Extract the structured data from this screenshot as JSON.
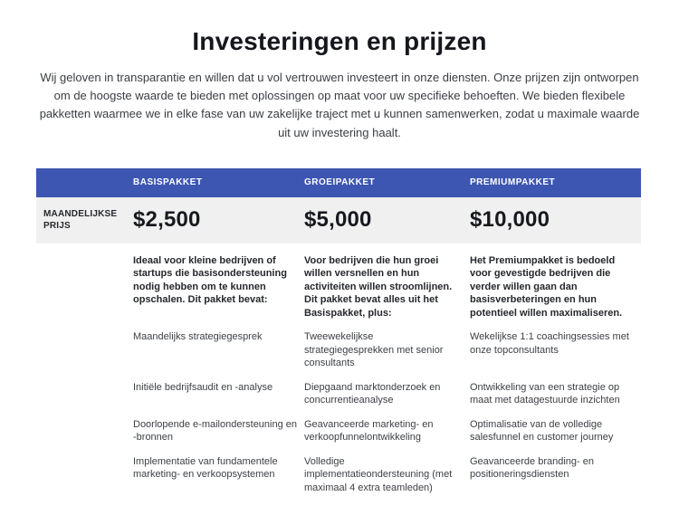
{
  "page": {
    "title": "Investeringen en prijzen",
    "intro": "Wij geloven in transparantie en willen dat u vol vertrouwen investeert in onze diensten. Onze prijzen zijn ontworpen om de hoogste waarde te bieden met oplossingen op maat voor uw specifieke behoeften. We bieden flexibele pakketten waarmee we in elke fase van uw zakelijke traject met u kunnen samenwerken, zodat u maximale waarde uit uw investering haalt."
  },
  "pricing_table": {
    "price_row_label": "MAANDELIJKSE PRIJS",
    "colors": {
      "header_bg": "#3c56b2",
      "price_row_bg": "#f0f0f0"
    },
    "columns": [
      {
        "name": "BASISPAKKET",
        "price": "$2,500",
        "description": "Ideaal voor kleine bedrijven of startups die basisondersteuning nodig hebben om te kunnen opschalen. Dit pakket bevat:",
        "features": [
          "Maandelijks strategiegesprek",
          "Initiële bedrijfsaudit en -analyse",
          "Doorlopende e-mailondersteuning en -bronnen",
          "Implementatie van fundamentele marketing- en verkoopsystemen"
        ]
      },
      {
        "name": "GROEIPAKKET",
        "price": "$5,000",
        "description": "Voor bedrijven die hun groei willen versnellen en hun activiteiten willen stroomlijnen. Dit pakket bevat alles uit het Basispakket, plus:",
        "features": [
          "Tweewekelijkse strategiegesprekken met senior consultants",
          "Diepgaand marktonderzoek en concurrentieanalyse",
          "Geavanceerde marketing- en verkoopfunnelontwikkeling",
          "Volledige implementatieondersteuning (met maximaal 4 extra teamleden)"
        ]
      },
      {
        "name": "PREMIUMPAKKET",
        "price": "$10,000",
        "description": "Het Premiumpakket is bedoeld voor gevestigde bedrijven die verder willen gaan dan basisverbeteringen en hun potentieel willen maximaliseren.",
        "features": [
          "Wekelijkse 1:1 coachingsessies met onze topconsultants",
          "Ontwikkeling van een strategie op maat met datagestuurde inzichten",
          "Optimalisatie van de volledige salesfunnel en customer journey",
          "Geavanceerde branding- en positioneringsdiensten"
        ]
      }
    ]
  }
}
